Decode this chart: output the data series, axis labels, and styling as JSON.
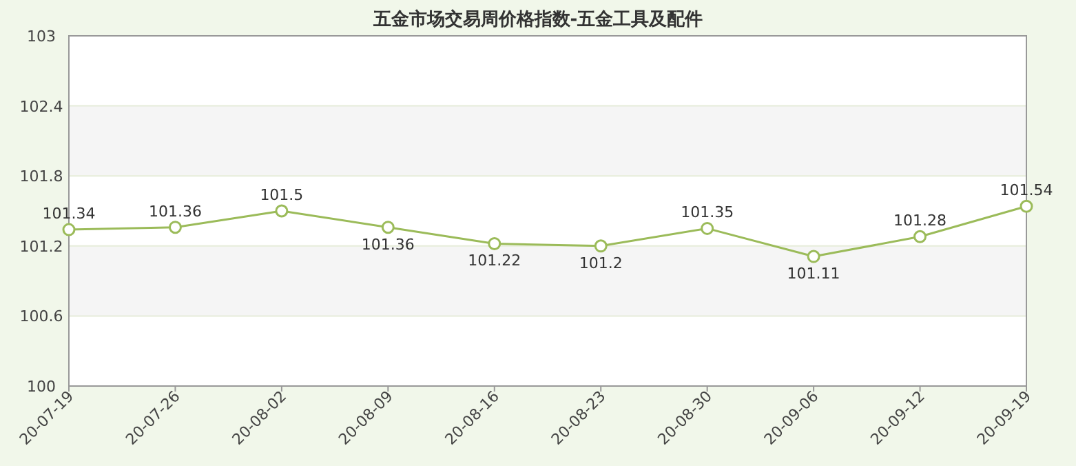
{
  "chart_data": {
    "type": "line",
    "title": "五金市场交易周价格指数-五金工具及配件",
    "categories": [
      "20-07-19",
      "20-07-26",
      "20-08-02",
      "20-08-09",
      "20-08-16",
      "20-08-23",
      "20-08-30",
      "20-09-06",
      "20-09-12",
      "20-09-19"
    ],
    "series": [
      {
        "color": "#9bbb59",
        "values": [
          101.34,
          101.36,
          101.5,
          101.36,
          101.22,
          101.2,
          101.35,
          101.11,
          101.28,
          101.54
        ]
      }
    ],
    "ylim": [
      100,
      103
    ],
    "yticks": [
      100,
      100.6,
      101.2,
      101.8,
      102.4,
      103
    ],
    "bands": [
      {
        "axis": "y",
        "from": 100.6,
        "to": 101.2,
        "color": "#f5f5f5"
      },
      {
        "axis": "y",
        "from": 101.8,
        "to": 102.4,
        "color": "#f5f5f5"
      }
    ],
    "grid": "y",
    "marker": "circle",
    "line_style": "solid",
    "data_labels": true
  }
}
